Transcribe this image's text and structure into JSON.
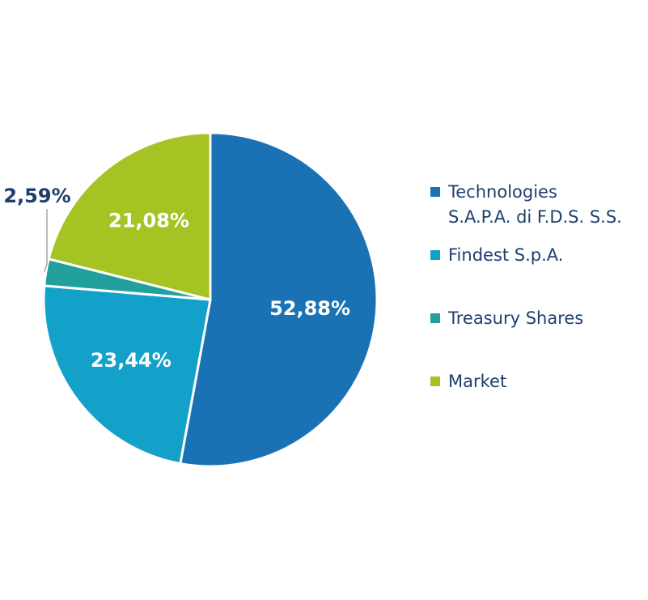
{
  "chart_data": {
    "type": "pie",
    "title": "",
    "slices": [
      {
        "name": "Technologies S.A.P.A. di F.D.S. S.S.",
        "legend_lines": [
          "Technologies",
          "S.A.P.A. di F.D.S. S.S."
        ],
        "value": 52.88,
        "label": "52,88%",
        "color": "#1a72b5",
        "label_position": "inside"
      },
      {
        "name": "Findest S.p.A.",
        "legend_lines": [
          "Findest S.p.A."
        ],
        "value": 23.44,
        "label": "23,44%",
        "color": "#14a1c9",
        "label_position": "inside"
      },
      {
        "name": "Treasury Shares",
        "legend_lines": [
          "Treasury Shares"
        ],
        "value": 2.59,
        "label": "2,59%",
        "color": "#22a09d",
        "label_position": "outside"
      },
      {
        "name": "Market",
        "legend_lines": [
          "Market"
        ],
        "value": 21.08,
        "label": "21,08%",
        "color": "#a6c324",
        "label_position": "inside"
      }
    ],
    "legend_position": "right",
    "start": "12 o'clock, clockwise"
  }
}
